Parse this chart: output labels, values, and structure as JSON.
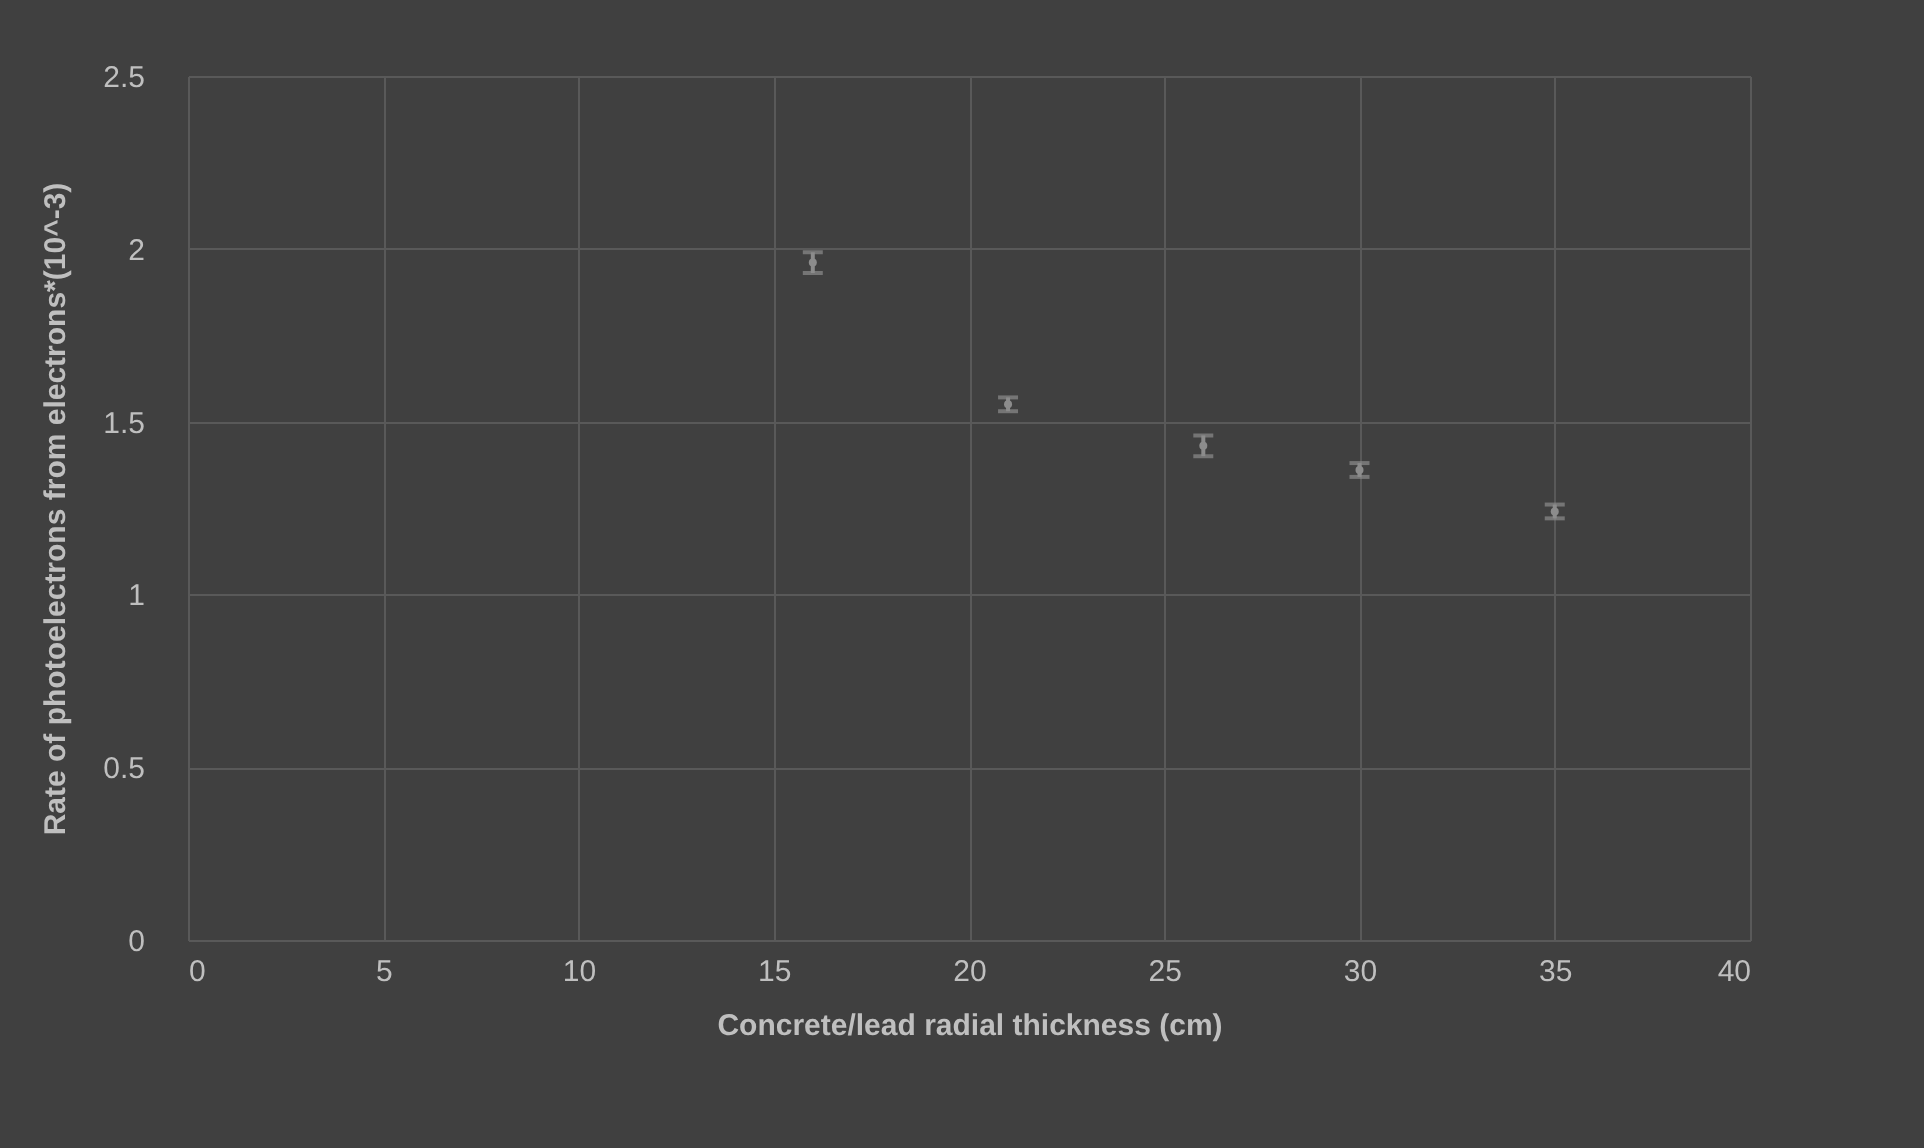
{
  "chart_data": {
    "type": "scatter",
    "xlabel": "Concrete/lead radial thickness (cm)",
    "ylabel": "Rate of photoelectrons from electrons*(10^-3)",
    "x": [
      16,
      21,
      26,
      30,
      35
    ],
    "series": [
      {
        "color": "#8c8c8c",
        "values": [
          1.96,
          1.55,
          1.43,
          1.36,
          1.24
        ],
        "errors": [
          0.03,
          0.02,
          0.03,
          0.02,
          0.02
        ]
      }
    ],
    "xlim": [
      0,
      40
    ],
    "xticks": [
      0,
      5,
      10,
      15,
      20,
      25,
      30,
      35,
      40
    ],
    "ylim": [
      0,
      2.5
    ],
    "yticks": [
      0,
      0.5,
      1,
      1.5,
      2,
      2.5
    ],
    "grid": true
  }
}
